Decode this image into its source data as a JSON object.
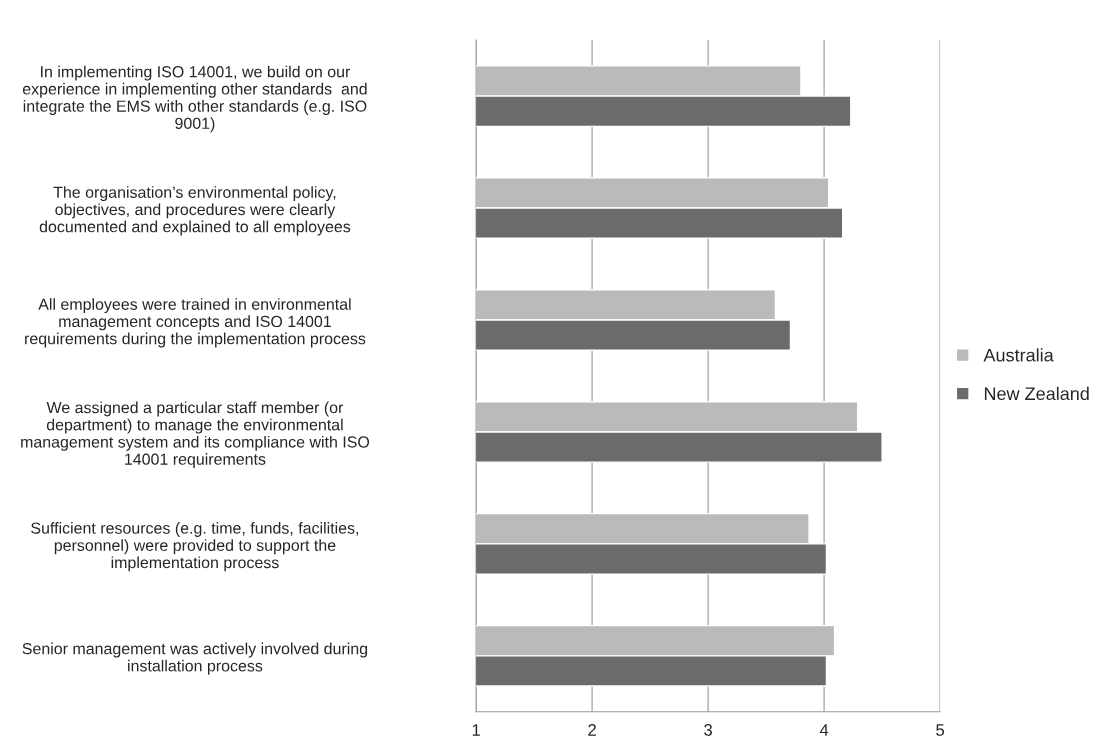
{
  "chart_data": {
    "type": "bar",
    "orientation": "horizontal",
    "categories": [
      "In implementing ISO 14001, we build on our\nexperience in implementing other standards  and\nintegrate the EMS with other standards (e.g. ISO\n9001)",
      "The organisation’s environmental policy,\nobjectives, and procedures were clearly\ndocumented and explained to all employees",
      "All employees were trained in environmental\nmanagement concepts and ISO 14001\nrequirements during the implementation process",
      "We assigned a particular staff member (or\ndepartment) to manage the environmental\nmanagement system and its compliance with ISO\n14001 requirements",
      "Sufficient resources (e.g. time, funds, facilities,\npersonnel) were provided to support the\nimplementation process",
      "Senior management was actively involved during\ninstallation process"
    ],
    "series": [
      {
        "name": "Australia",
        "color": "#bababa",
        "values": [
          3.8,
          4.04,
          3.58,
          4.29,
          3.87,
          4.09
        ]
      },
      {
        "name": "New Zealand",
        "color": "#6b6b6b",
        "values": [
          4.23,
          4.16,
          3.71,
          4.5,
          4.02,
          4.02
        ]
      }
    ],
    "xlim": [
      1,
      5
    ],
    "xticks": [
      1,
      2,
      3,
      4,
      5
    ],
    "grid": "x",
    "legend": "right"
  }
}
